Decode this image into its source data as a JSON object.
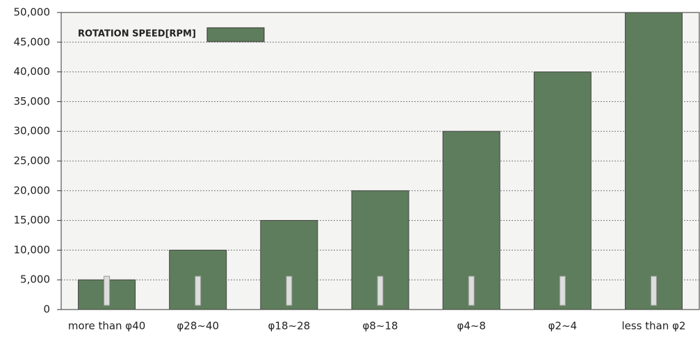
{
  "chart_data": {
    "type": "bar",
    "legend_label": "ROTATION SPEED[RPM]",
    "categories": [
      "more than φ40",
      "φ28~40",
      "φ18~28",
      "φ8~18",
      "φ4~8",
      "φ2~4",
      "less than φ2"
    ],
    "values": [
      5000,
      10000,
      15000,
      20000,
      30000,
      40000,
      50000
    ],
    "color": "#5e7d5c",
    "ylim": [
      0,
      50000
    ],
    "yticks": [
      0,
      {
        "value": 5000,
        "label": "5,000"
      },
      {
        "value": 10000,
        "label": "10,000"
      },
      {
        "value": 15000,
        "label": "15,000"
      },
      {
        "value": 20000,
        "label": "20,000"
      },
      {
        "value": 25000,
        "label": "25,000"
      },
      {
        "value": 30000,
        "label": "30,000"
      },
      {
        "value": 35000,
        "label": "35,000"
      },
      {
        "value": 40000,
        "label": "40,000"
      },
      {
        "value": 45000,
        "label": "45,000"
      },
      {
        "value": 50000,
        "label": "50,000"
      }
    ],
    "grid": true
  }
}
